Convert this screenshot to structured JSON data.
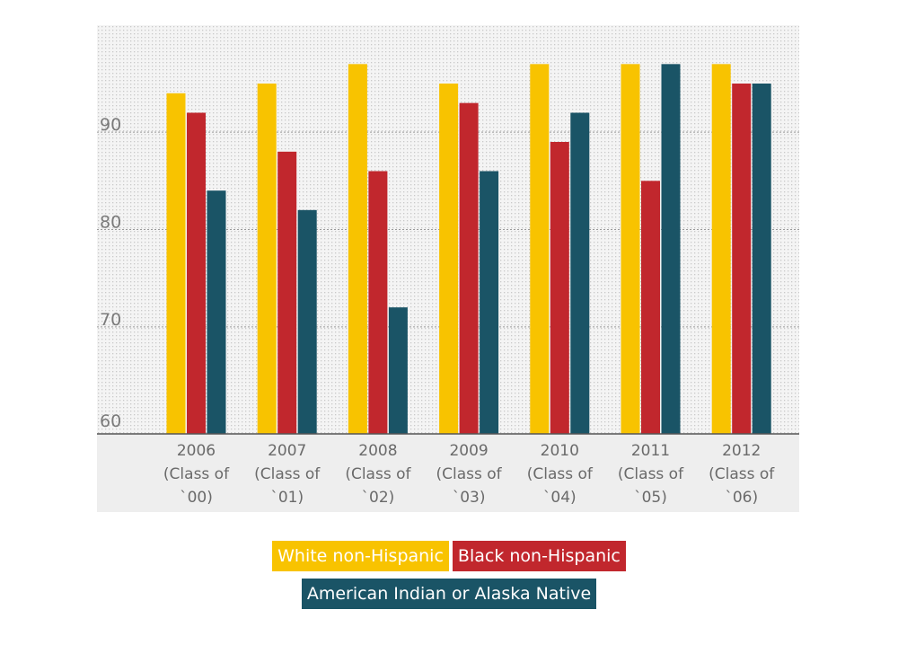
{
  "chart_data": {
    "type": "bar",
    "categories": [
      [
        "2006",
        "(Class of",
        "`00)"
      ],
      [
        "2007",
        "(Class of",
        "`01)"
      ],
      [
        "2008",
        "(Class of",
        "`02)"
      ],
      [
        "2009",
        "(Class of",
        "`03)"
      ],
      [
        "2010",
        "(Class of",
        "`04)"
      ],
      [
        "2011",
        "(Class of",
        "`05)"
      ],
      [
        "2012",
        "(Class of",
        "`06)"
      ]
    ],
    "series": [
      {
        "name": "White non-Hispanic",
        "color": "#f8c300",
        "values": [
          94,
          95,
          97,
          95,
          97,
          97,
          97
        ]
      },
      {
        "name": "Black non-Hispanic",
        "color": "#c1272d",
        "values": [
          92,
          88,
          86,
          93,
          89,
          85,
          95
        ]
      },
      {
        "name": "American Indian or Alaska Native",
        "color": "#1a5466",
        "values": [
          84,
          82,
          72,
          86,
          92,
          97,
          95
        ]
      }
    ],
    "yticks": [
      "60",
      "70",
      "80",
      "90"
    ],
    "ylim": [
      59,
      101
    ],
    "grid": true,
    "legend_position": "bottom-center"
  }
}
